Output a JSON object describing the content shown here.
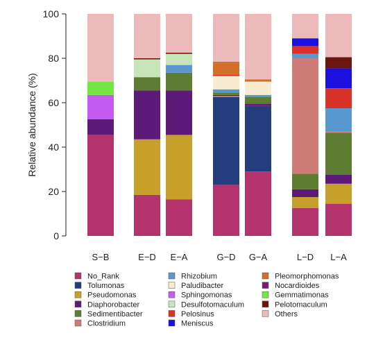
{
  "chart_data": {
    "type": "bar",
    "stacked": true,
    "ylabel": "Relative abundance (%)",
    "ylim": [
      0,
      100
    ],
    "yticks": [
      0,
      20,
      40,
      60,
      80,
      100
    ],
    "grid": false,
    "legend_position": "bottom",
    "categories": [
      "S−B",
      "E−D",
      "E−A",
      "G−D",
      "G−A",
      "L−D",
      "L−A"
    ],
    "groups": [
      [
        "S−B"
      ],
      [
        "E−D",
        "E−A"
      ],
      [
        "G−D",
        "G−A"
      ],
      [
        "L−D",
        "L−A"
      ]
    ],
    "series": [
      {
        "name": "No_Rank",
        "color": "#b5336c",
        "values": [
          45.5,
          18.5,
          16.5,
          23,
          29,
          12.5,
          14.5
        ]
      },
      {
        "name": "Tolumonas",
        "color": "#243d7c",
        "values": [
          0,
          0,
          0,
          39.5,
          29.5,
          0,
          0
        ]
      },
      {
        "name": "Pseudomonas",
        "color": "#c7a02c",
        "values": [
          0,
          25,
          29,
          0.5,
          0,
          5,
          9
        ]
      },
      {
        "name": "Diaphorobacter",
        "color": "#5d1a78",
        "values": [
          7,
          22,
          20,
          0.5,
          1,
          3.5,
          4
        ]
      },
      {
        "name": "Sedimentibacter",
        "color": "#5d7d32",
        "values": [
          0,
          6,
          8,
          1,
          3,
          7,
          19
        ]
      },
      {
        "name": "Clostridium",
        "color": "#cf7c78",
        "values": [
          0,
          0,
          0,
          0,
          0,
          52,
          0.5
        ]
      },
      {
        "name": "Rhizobium",
        "color": "#5a99d0",
        "values": [
          0,
          0,
          3.5,
          1.5,
          1,
          2,
          10.5
        ]
      },
      {
        "name": "Paludibacter",
        "color": "#f7ebd0",
        "values": [
          0,
          0,
          0,
          6,
          6,
          0,
          0
        ]
      },
      {
        "name": "Sphingomonas",
        "color": "#c65bf2",
        "values": [
          11,
          0,
          0,
          0,
          0,
          0,
          0
        ]
      },
      {
        "name": "Desulfotomaculum",
        "color": "#c6e5b9",
        "values": [
          0,
          8,
          5,
          0,
          0,
          0,
          0
        ]
      },
      {
        "name": "Pelosinus",
        "color": "#d93328",
        "values": [
          0,
          0,
          0,
          0.5,
          0,
          3.5,
          9
        ]
      },
      {
        "name": "Meniscus",
        "color": "#1c10e0",
        "values": [
          0,
          0,
          0,
          0,
          0,
          3.5,
          9
        ]
      },
      {
        "name": "Pleomorphomonas",
        "color": "#d2702a",
        "values": [
          0,
          0,
          0,
          6,
          1,
          0,
          0
        ]
      },
      {
        "name": "Nocardioides",
        "color": "#7a1a70",
        "values": [
          0,
          0,
          0,
          0,
          0,
          0,
          0
        ]
      },
      {
        "name": "Gemmatimonas",
        "color": "#73e642",
        "values": [
          6,
          0,
          0,
          0,
          0,
          0,
          0
        ]
      },
      {
        "name": "Pelotomaculum",
        "color": "#6b160f",
        "values": [
          0,
          0.5,
          0.5,
          0,
          0,
          0,
          5
        ]
      },
      {
        "name": "Others",
        "color": "#ecbaba",
        "values": [
          30.5,
          20,
          17.5,
          21.5,
          29.5,
          11,
          19.5
        ]
      }
    ]
  }
}
